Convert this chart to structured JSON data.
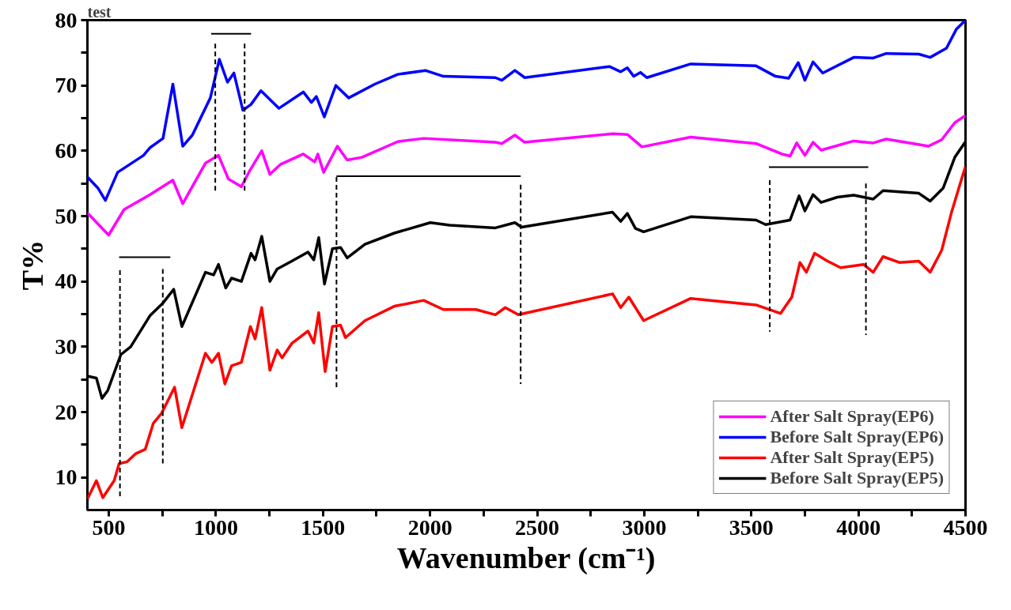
{
  "chart_data": {
    "type": "line",
    "xlabel": "Wavenumber (cm⁻¹)",
    "ylabel": "T%",
    "annotations": [
      "test"
    ],
    "xlim": [
      400,
      4500
    ],
    "ylim": [
      5,
      80
    ],
    "xticks": [
      500,
      {
        "value": 750,
        "label": null
      },
      1000,
      {
        "value": 1250,
        "label": null
      },
      1500,
      {
        "value": 1750,
        "label": null
      },
      2000,
      {
        "value": 2250,
        "label": null
      },
      2500,
      {
        "value": 2750,
        "label": null
      },
      3000,
      {
        "value": 3250,
        "label": null
      },
      3500,
      {
        "value": 3750,
        "label": null
      },
      4000,
      {
        "value": 4250,
        "label": null
      },
      4500
    ],
    "yticks": [
      10,
      {
        "value": 15,
        "label": null
      },
      20,
      {
        "value": 25,
        "label": null
      },
      30,
      {
        "value": 35,
        "label": null
      },
      40,
      {
        "value": 45,
        "label": null
      },
      50,
      {
        "value": 55,
        "label": null
      },
      60,
      {
        "value": 65,
        "label": null
      },
      70,
      {
        "value": 75,
        "label": null
      },
      80
    ],
    "grid": false,
    "legend": "bottom right",
    "marker": "none",
    "line_style": "solid",
    "series": [
      {
        "name": "After Salt Spray(EP6)",
        "color": "#ff00ff",
        "x": [
          400,
          499,
          571,
          693,
          799,
          845,
          951,
          1012,
          1058,
          1119,
          1157,
          1214,
          1252,
          1301,
          1408,
          1461,
          1476,
          1503,
          1567,
          1613,
          1681,
          1849,
          1970,
          2305,
          2335,
          2396,
          2442,
          2852,
          2921,
          2989,
          3217,
          3522,
          3643,
          3681,
          3712,
          3750,
          3788,
          3826,
          3978,
          4069,
          4130,
          4327,
          4389,
          4450,
          4500
        ],
        "values": [
          50.5,
          47.1,
          51.0,
          53.3,
          55.5,
          51.9,
          58.1,
          59.3,
          55.7,
          54.5,
          56.9,
          60.0,
          56.4,
          57.9,
          59.5,
          58.3,
          59.5,
          56.7,
          60.7,
          58.6,
          59.0,
          61.4,
          61.9,
          61.3,
          61.1,
          62.4,
          61.3,
          62.6,
          62.5,
          60.6,
          62.1,
          61.1,
          59.5,
          59.2,
          61.2,
          59.3,
          61.3,
          60.1,
          61.5,
          61.2,
          61.8,
          60.7,
          61.7,
          64.3,
          65.4
        ]
      },
      {
        "name": "Before Salt Spray(EP6)",
        "color": "#0000ff",
        "x": [
          400,
          449,
          484,
          541,
          662,
          693,
          753,
          799,
          845,
          890,
          974,
          1016,
          1054,
          1084,
          1126,
          1164,
          1210,
          1294,
          1408,
          1446,
          1469,
          1506,
          1560,
          1620,
          1742,
          1849,
          1978,
          2062,
          2305,
          2335,
          2396,
          2442,
          2837,
          2890,
          2921,
          2951,
          2982,
          3012,
          3217,
          3522,
          3613,
          3674,
          3719,
          3750,
          3788,
          3833,
          3978,
          4069,
          4130,
          4282,
          4335,
          4411,
          4457,
          4500
        ],
        "values": [
          56.0,
          54.3,
          52.4,
          56.7,
          59.3,
          60.5,
          61.9,
          70.2,
          60.7,
          62.4,
          68.1,
          74.0,
          70.5,
          71.9,
          66.2,
          67.1,
          69.2,
          66.5,
          69.0,
          67.4,
          68.3,
          65.2,
          70.0,
          68.1,
          70.2,
          71.7,
          72.3,
          71.4,
          71.2,
          70.8,
          72.3,
          71.2,
          72.9,
          72.1,
          72.7,
          71.4,
          72.0,
          71.2,
          73.3,
          73.0,
          71.4,
          71.1,
          73.5,
          70.8,
          73.6,
          71.9,
          74.3,
          74.2,
          74.9,
          74.8,
          74.3,
          75.7,
          78.6,
          80.0
        ]
      },
      {
        "name": "After Salt Spray(EP5)",
        "color": "#ff0000",
        "x": [
          400,
          442,
          472,
          525,
          548,
          586,
          624,
          670,
          708,
          746,
          807,
          841,
          951,
          981,
          1012,
          1042,
          1073,
          1119,
          1161,
          1183,
          1214,
          1252,
          1286,
          1309,
          1354,
          1430,
          1457,
          1480,
          1510,
          1544,
          1582,
          1605,
          1696,
          1833,
          1970,
          2062,
          2214,
          2305,
          2351,
          2412,
          2852,
          2890,
          2928,
          2997,
          3217,
          3522,
          3636,
          3689,
          3727,
          3757,
          3795,
          3856,
          3917,
          4024,
          4069,
          4115,
          4191,
          4282,
          4335,
          4389,
          4434,
          4480,
          4500
        ],
        "values": [
          6.7,
          9.5,
          6.9,
          9.5,
          12.1,
          12.4,
          13.6,
          14.3,
          18.3,
          19.8,
          23.8,
          17.6,
          29.0,
          27.6,
          29.0,
          24.3,
          27.1,
          27.6,
          33.1,
          31.2,
          36.0,
          26.4,
          29.5,
          28.3,
          30.5,
          32.4,
          30.6,
          35.2,
          26.2,
          33.1,
          33.3,
          31.4,
          34.0,
          36.2,
          37.1,
          35.7,
          35.7,
          34.9,
          36.0,
          34.9,
          38.1,
          36.0,
          37.6,
          34.0,
          37.4,
          36.4,
          35.1,
          37.6,
          42.9,
          41.4,
          44.3,
          43.1,
          42.1,
          42.6,
          41.4,
          43.8,
          42.9,
          43.1,
          41.4,
          44.8,
          50.5,
          55.5,
          57.6
        ]
      },
      {
        "name": "Before Salt Spray(EP5)",
        "color": "#000000",
        "x": [
          400,
          442,
          468,
          495,
          556,
          602,
          693,
          753,
          803,
          841,
          951,
          989,
          1012,
          1046,
          1073,
          1119,
          1164,
          1183,
          1214,
          1252,
          1286,
          1354,
          1430,
          1457,
          1480,
          1507,
          1544,
          1582,
          1613,
          1696,
          1833,
          2001,
          2092,
          2305,
          2396,
          2427,
          2852,
          2890,
          2921,
          2959,
          2997,
          3217,
          3522,
          3567,
          3681,
          3723,
          3750,
          3788,
          3826,
          3902,
          3978,
          4069,
          4115,
          4282,
          4335,
          4396,
          4450,
          4500
        ],
        "values": [
          25.5,
          25.2,
          22.1,
          23.3,
          28.8,
          30.0,
          34.8,
          36.7,
          38.8,
          33.1,
          41.4,
          41.0,
          42.6,
          39.0,
          40.5,
          40.0,
          44.3,
          43.3,
          46.9,
          40.0,
          41.9,
          43.1,
          44.5,
          43.3,
          46.7,
          39.6,
          45.0,
          45.2,
          43.6,
          45.7,
          47.4,
          49.0,
          48.6,
          48.2,
          49.0,
          48.3,
          50.6,
          49.2,
          50.4,
          48.1,
          47.6,
          49.9,
          49.4,
          48.7,
          49.4,
          53.1,
          50.8,
          53.3,
          52.1,
          52.9,
          53.2,
          52.6,
          53.9,
          53.5,
          52.3,
          54.3,
          59.0,
          61.4
        ]
      },
      {
        "color": "#000000",
        "line_style": "dashed",
        "x": [
          997,
          997
        ],
        "values": [
          76.4,
          53.6
        ]
      },
      {
        "color": "#000000",
        "line_style": "dashed",
        "x": [
          1134,
          1134
        ],
        "values": [
          76.4,
          53.6
        ]
      },
      {
        "color": "#000000",
        "line_style": "dashed",
        "x": [
          1563,
          1563
        ],
        "values": [
          56.0,
          23.6
        ]
      },
      {
        "color": "#000000",
        "line_style": "dashed",
        "x": [
          2423,
          2423
        ],
        "values": [
          54.8,
          24.3
        ]
      },
      {
        "color": "#000000",
        "line_style": "dashed",
        "x": [
          3586,
          3586
        ],
        "values": [
          55.5,
          32.3
        ]
      },
      {
        "color": "#000000",
        "line_style": "dashed",
        "x": [
          4035,
          4035
        ],
        "values": [
          55.0,
          31.8
        ]
      },
      {
        "color": "#000000",
        "line_style": "dashed",
        "x": [
          552,
          552
        ],
        "values": [
          41.7,
          6.9
        ]
      },
      {
        "color": "#000000",
        "line_style": "dashed",
        "x": [
          752,
          752
        ],
        "values": [
          41.9,
          12.1
        ]
      },
      {
        "color": "#000000",
        "x": [
          978,
          1164
        ],
        "values": [
          77.9,
          77.9
        ]
      },
      {
        "color": "#000000",
        "x": [
          1563,
          2423
        ],
        "values": [
          56.1,
          56.1
        ]
      },
      {
        "color": "#000000",
        "x": [
          3582,
          4046
        ],
        "values": [
          57.5,
          57.5
        ]
      },
      {
        "color": "#000000",
        "x": [
          548,
          787
        ],
        "values": [
          43.7,
          43.7
        ]
      }
    ]
  }
}
